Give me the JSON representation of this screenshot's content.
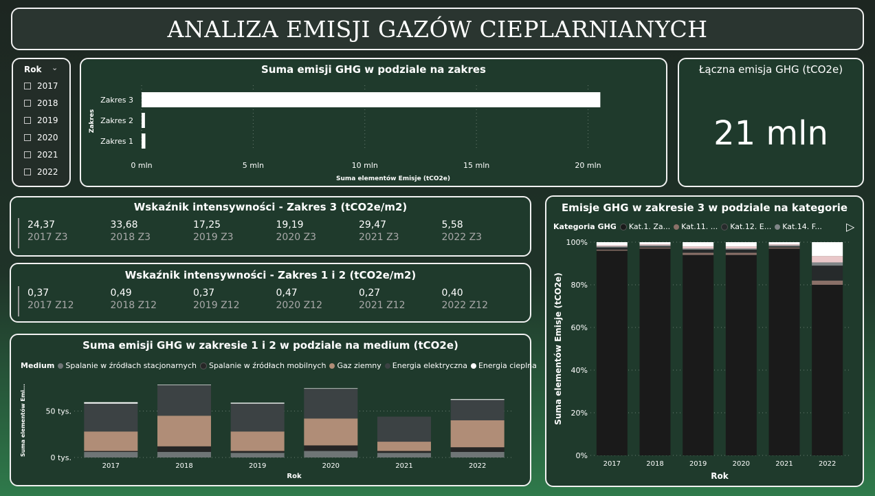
{
  "header": {
    "title": "ANALIZA EMISJI GAZÓW CIEPLARNIANYCH"
  },
  "slicer": {
    "label": "Rok",
    "items": [
      "2017",
      "2018",
      "2019",
      "2020",
      "2021",
      "2022"
    ]
  },
  "kpi_total": {
    "title": "Łączna emisja GHG (tCO2e)",
    "value": "21 mln"
  },
  "intensity_z3": {
    "title": "Wskaźnik intensywności - Zakres 3 (tCO2e/m2)",
    "items": [
      {
        "value": "24,37",
        "label": "2017 Z3"
      },
      {
        "value": "33,68",
        "label": "2018 Z3"
      },
      {
        "value": "17,25",
        "label": "2019 Z3"
      },
      {
        "value": "19,19",
        "label": "2020 Z3"
      },
      {
        "value": "29,47",
        "label": "2021 Z3"
      },
      {
        "value": "5,58",
        "label": "2022 Z3"
      }
    ]
  },
  "intensity_z12": {
    "title": "Wskaźnik intensywności - Zakres 1 i 2 (tCO2e/m2)",
    "items": [
      {
        "value": "0,37",
        "label": "2017 Z12"
      },
      {
        "value": "0,49",
        "label": "2018 Z12"
      },
      {
        "value": "0,37",
        "label": "2019 Z12"
      },
      {
        "value": "0,47",
        "label": "2020 Z12"
      },
      {
        "value": "0,27",
        "label": "2021 Z12"
      },
      {
        "value": "0,40",
        "label": "2022 Z12"
      }
    ]
  },
  "chart_data": [
    {
      "id": "scope",
      "type": "bar",
      "orientation": "horizontal",
      "title": "Suma emisji GHG w podziale na zakres",
      "xlabel": "Suma elementów Emisje (tCO2e)",
      "ylabel": "Zakres",
      "categories": [
        "Zakres 3",
        "Zakres 2",
        "Zakres 1"
      ],
      "values": [
        20.55,
        0.15,
        0.17
      ],
      "xlim": [
        0,
        21
      ],
      "ticks": [
        0,
        5,
        10,
        15,
        20
      ],
      "tick_labels": [
        "0 mln",
        "5 mln",
        "10 mln",
        "15 mln",
        "20 mln"
      ],
      "color": "#ffffff",
      "grid": true
    },
    {
      "id": "medium",
      "type": "bar",
      "stacked": true,
      "title": "Suma emisji GHG w zakresie 1 i 2 w podziale na medium (tCO2e)",
      "legend_title": "Medium",
      "xlabel": "Rok",
      "ylabel": "Suma elementów Emi...",
      "categories": [
        "2017",
        "2018",
        "2019",
        "2020",
        "2021",
        "2022"
      ],
      "ylim": [
        0,
        80
      ],
      "ticks": [
        0,
        50
      ],
      "tick_labels": [
        "0 tys.",
        "50 tys."
      ],
      "series": [
        {
          "name": "Spalanie w źródłach stacjonarnych",
          "color": "#6f7576",
          "values": [
            6,
            6,
            5,
            7,
            5,
            6
          ]
        },
        {
          "name": "Spalanie w źródłach mobilnych",
          "color": "#262626",
          "values": [
            1,
            6,
            2,
            6,
            2,
            5
          ]
        },
        {
          "name": "Gaz ziemny",
          "color": "#b08d77",
          "values": [
            21,
            33,
            21,
            29,
            10,
            29
          ]
        },
        {
          "name": "Energia elektryczna",
          "color": "#3c4244",
          "values": [
            30,
            33,
            30,
            32,
            27,
            22
          ]
        },
        {
          "name": "Energia cieplna",
          "color": "#ffffff",
          "values": [
            1.5,
            0.5,
            1,
            0.5,
            0,
            0.8
          ]
        }
      ],
      "grid": true
    },
    {
      "id": "category",
      "type": "bar",
      "stacked": true,
      "percent": true,
      "title": "Emisje GHG w zakresie 3 w podziale na kategorie",
      "legend_title": "Kategoria GHG",
      "xlabel": "Rok",
      "ylabel": "Suma elementów Emisje (tCO2e)",
      "categories": [
        "2017",
        "2018",
        "2019",
        "2020",
        "2021",
        "2022"
      ],
      "ylim": [
        0,
        100
      ],
      "ticks": [
        0,
        20,
        40,
        60,
        80,
        100
      ],
      "tick_labels": [
        "0%",
        "20%",
        "40%",
        "60%",
        "80%",
        "100%"
      ],
      "series": [
        {
          "name": "Kat.1. Za...",
          "color": "#1a1a1a",
          "values": [
            96,
            97,
            94,
            94,
            97,
            80
          ]
        },
        {
          "name": "Kat.11. ...",
          "color": "#8a7068",
          "values": [
            0.5,
            0.5,
            1,
            1,
            0.5,
            2
          ]
        },
        {
          "name": "Kat.12. E...",
          "color": "#262a2b",
          "values": [
            1,
            0.5,
            1.5,
            1.5,
            0.5,
            7
          ]
        },
        {
          "name": "Kat.14. F...",
          "color": "#7f8587",
          "values": [
            0.5,
            0.5,
            0.5,
            0.5,
            0.5,
            1.5
          ]
        },
        {
          "name": "",
          "color": "#e9c7c9",
          "values": [
            0.5,
            0.5,
            1,
            1,
            0.5,
            3
          ]
        },
        {
          "name": "",
          "color": "#ffffff",
          "values": [
            1.5,
            1,
            2,
            2,
            1,
            6.5
          ]
        }
      ],
      "grid": true
    }
  ]
}
